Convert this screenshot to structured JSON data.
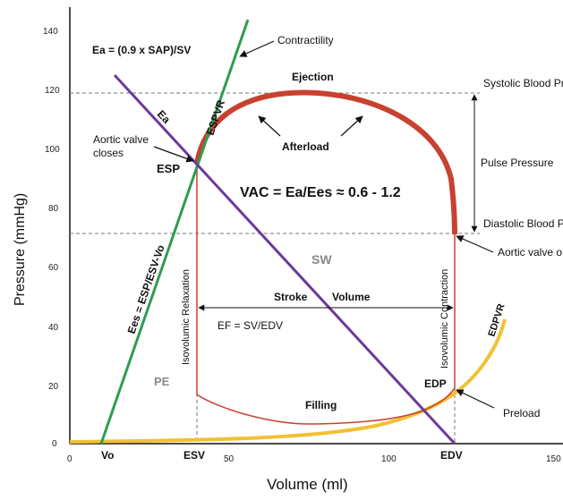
{
  "diagram": {
    "title_formula_ea": "Ea = (0.9 x SAP)/SV",
    "axes": {
      "x_label": "Volume (ml)",
      "y_label": "Pressure (mmHg)",
      "x_ticks": [
        "0",
        "50",
        "100",
        "150"
      ],
      "y_ticks": [
        "0",
        "20",
        "40",
        "60",
        "80",
        "100",
        "120",
        "140"
      ],
      "x_point_labels": [
        "Vo",
        "ESV",
        "EDV"
      ]
    },
    "labels": {
      "contractility": "Contractility",
      "ejection": "Ejection",
      "systolic_bp": "Systolic Blood Pr",
      "espvr": "ESPVR",
      "ea_line": "Ea",
      "aortic_closes_line1": "Aortic valve",
      "aortic_closes_line2": "closes",
      "afterload": "Afterload",
      "pulse_pressure": "Pulse Pressure",
      "esp": "ESP",
      "vac": "VAC = Ea/Ees ≈ 0.6 - 1.2",
      "diastolic_bp": "Diastolic Blood P",
      "aortic_opens": "Aortic valve o",
      "sw": "SW",
      "iso_relax": "Isovolumic Relaxation",
      "iso_contract": "Isovolumic Contraction",
      "stroke": "Stroke",
      "volume": "Volume",
      "ef": "EF = SV/EDV",
      "ees": "Ees = ESP/ESV-Vo",
      "edpvr": "EDPVR",
      "pe": "PE",
      "edp": "EDP",
      "filling": "Filling",
      "preload": "Preload"
    },
    "colors": {
      "loop_red": "#c8412f",
      "espvr_green": "#2f9c52",
      "ea_purple": "#6a3a9a",
      "edpvr_yellow": "#f2c034",
      "axis_black": "#111111",
      "sw_gray": "#8a8a8a",
      "dash_gray": "#777777"
    }
  }
}
